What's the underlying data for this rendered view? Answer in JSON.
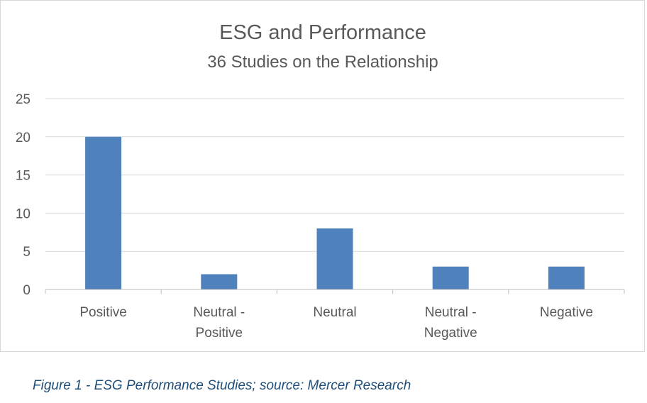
{
  "chart_data": {
    "type": "bar",
    "title": "ESG and Performance",
    "subtitle": "36 Studies on the Relationship",
    "categories": [
      "Positive",
      "Neutral - Positive",
      "Neutral",
      "Neutral - Negative",
      "Negative"
    ],
    "category_lines": [
      [
        "Positive"
      ],
      [
        "Neutral -",
        "Positive"
      ],
      [
        "Neutral"
      ],
      [
        "Neutral -",
        "Negative"
      ],
      [
        "Negative"
      ]
    ],
    "values": [
      20,
      2,
      8,
      3,
      3
    ],
    "ylim": [
      0,
      25
    ],
    "yticks": [
      0,
      5,
      10,
      15,
      20,
      25
    ],
    "xlabel": "",
    "ylabel": "",
    "grid": true,
    "legend": "none",
    "bar_color": "#4f81bd"
  },
  "caption": "Figure 1 - ESG Performance Studies; source: Mercer Research"
}
